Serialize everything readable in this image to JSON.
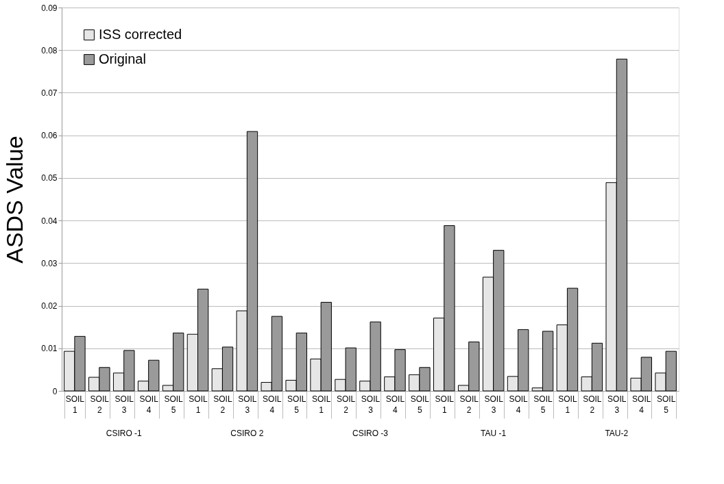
{
  "chart_data": {
    "type": "bar",
    "ylabel": "ASDS Value",
    "categories": [
      "SOIL 1",
      "SOIL 2",
      "SOIL 3",
      "SOIL 4",
      "SOIL 5",
      "SOIL 1",
      "SOIL 2",
      "SOIL 3",
      "SOIL 4",
      "SOIL 5",
      "SOIL 1",
      "SOIL 2",
      "SOIL 3",
      "SOIL 4",
      "SOIL 5",
      "SOIL 1",
      "SOIL 2",
      "SOIL 3",
      "SOIL 4",
      "SOIL 5",
      "SOIL 1",
      "SOIL 2",
      "SOIL 3",
      "SOIL 4",
      "SOIL 5"
    ],
    "annotations": [
      "CSIRO -1",
      "CSIRO 2",
      "CSIRO -3",
      "TAU -1",
      "TAU-2"
    ],
    "series": [
      {
        "name": "ISS corrected",
        "color": "#e6e6e6",
        "values": [
          0.0093,
          0.0032,
          0.0042,
          0.0023,
          0.0013,
          0.0133,
          0.0052,
          0.0188,
          0.002,
          0.0025,
          0.0075,
          0.0027,
          0.0023,
          0.0033,
          0.0038,
          0.0171,
          0.0013,
          0.0267,
          0.0034,
          0.0007,
          0.0155,
          0.0033,
          0.0489,
          0.003,
          0.0042
        ]
      },
      {
        "name": "Original",
        "color": "#9a9a9a",
        "values": [
          0.0128,
          0.0055,
          0.0095,
          0.0072,
          0.0136,
          0.0239,
          0.0103,
          0.0609,
          0.0175,
          0.0136,
          0.0208,
          0.0101,
          0.0162,
          0.0097,
          0.0055,
          0.0388,
          0.0115,
          0.033,
          0.0144,
          0.014,
          0.0241,
          0.0112,
          0.0779,
          0.0079,
          0.0093
        ]
      }
    ],
    "ylim": [
      0,
      0.09
    ],
    "yticks": [
      0,
      0.01,
      0.02,
      0.03,
      0.04,
      0.05,
      0.06,
      0.07,
      0.08,
      0.09
    ],
    "grid": "y",
    "legend": "top left"
  }
}
